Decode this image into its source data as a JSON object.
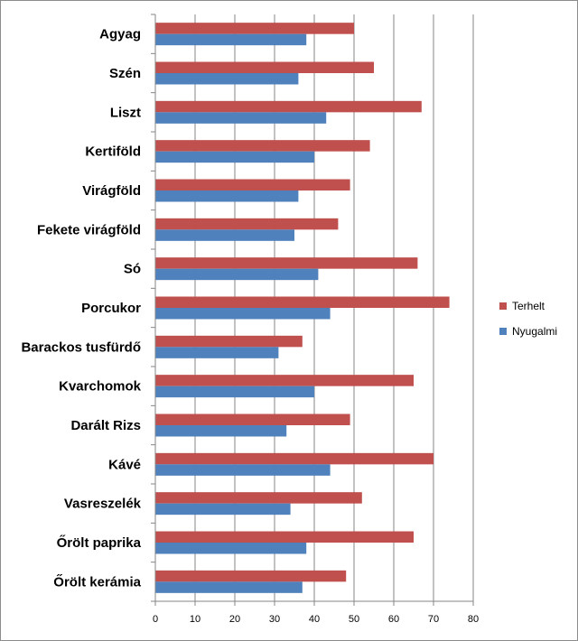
{
  "chart_data": {
    "type": "bar",
    "orientation": "horizontal",
    "categories": [
      "Agyag",
      "Szén",
      "Liszt",
      "Kertiföld",
      "Virágföld",
      "Fekete virágföld",
      "Só",
      "Porcukor",
      "Barackos tusfürdő",
      "Kvarchomok",
      "Darált Rizs",
      "Kávé",
      "Vasreszelék",
      "Őrölt paprika",
      "Őrölt kerámia"
    ],
    "series": [
      {
        "name": "Terhelt",
        "color": "#c0504d",
        "values": [
          50,
          55,
          67,
          54,
          49,
          46,
          66,
          74,
          37,
          65,
          49,
          70,
          52,
          65,
          48
        ]
      },
      {
        "name": "Nyugalmi",
        "color": "#4f81bd",
        "values": [
          38,
          36,
          43,
          40,
          36,
          35,
          41,
          44,
          31,
          40,
          33,
          44,
          34,
          38,
          37
        ]
      }
    ],
    "xlim": [
      0,
      80
    ],
    "xticks": [
      "0",
      "10",
      "20",
      "30",
      "40",
      "50",
      "60",
      "70",
      "80"
    ],
    "grid": "vertical",
    "legend_position": "right",
    "title": "",
    "xlabel": "",
    "ylabel": ""
  }
}
